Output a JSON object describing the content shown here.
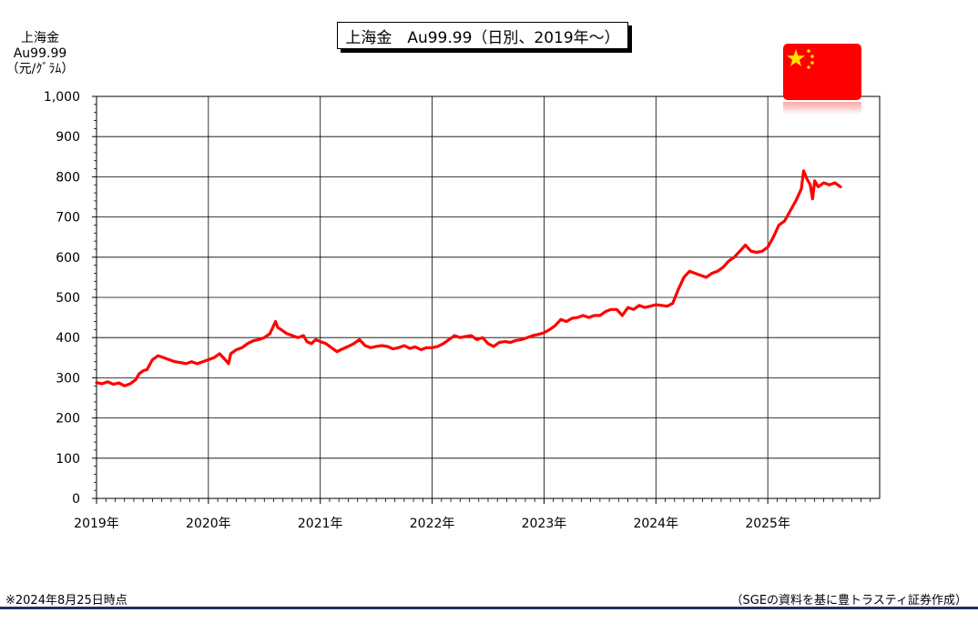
{
  "chart_data": {
    "type": "line",
    "title": "上海金　Au99.99（日別、2019年～）",
    "ylabel_lines": [
      "上海金",
      "Au99.99",
      "（元/ｸﾞﾗﾑ）"
    ],
    "ylim": [
      0,
      1000
    ],
    "yticks": [
      0,
      100,
      200,
      300,
      400,
      500,
      600,
      700,
      800,
      900,
      1000
    ],
    "ytick_labels": [
      "0",
      "100",
      "200",
      "300",
      "400",
      "500",
      "600",
      "700",
      "800",
      "900",
      "1,000"
    ],
    "xlim": [
      2019.0,
      2026.0
    ],
    "xticks": [
      2019,
      2020,
      2021,
      2022,
      2023,
      2024,
      2025
    ],
    "xtick_labels": [
      "2019年",
      "2020年",
      "2021年",
      "2022年",
      "2023年",
      "2024年",
      "2025年"
    ],
    "grid": true,
    "series": [
      {
        "color": "#ff0000",
        "x": [
          2019.0,
          2019.05,
          2019.1,
          2019.15,
          2019.2,
          2019.25,
          2019.3,
          2019.35,
          2019.38,
          2019.42,
          2019.45,
          2019.5,
          2019.55,
          2019.6,
          2019.65,
          2019.7,
          2019.75,
          2019.8,
          2019.85,
          2019.9,
          2019.95,
          2020.0,
          2020.05,
          2020.1,
          2020.15,
          2020.18,
          2020.2,
          2020.25,
          2020.3,
          2020.35,
          2020.4,
          2020.45,
          2020.5,
          2020.55,
          2020.6,
          2020.62,
          2020.65,
          2020.7,
          2020.75,
          2020.8,
          2020.85,
          2020.88,
          2020.92,
          2020.96,
          2021.0,
          2021.05,
          2021.1,
          2021.15,
          2021.2,
          2021.25,
          2021.3,
          2021.35,
          2021.4,
          2021.45,
          2021.5,
          2021.55,
          2021.6,
          2021.65,
          2021.7,
          2021.75,
          2021.8,
          2021.85,
          2021.9,
          2021.95,
          2022.0,
          2022.05,
          2022.1,
          2022.15,
          2022.2,
          2022.25,
          2022.3,
          2022.35,
          2022.4,
          2022.45,
          2022.5,
          2022.55,
          2022.6,
          2022.65,
          2022.7,
          2022.75,
          2022.8,
          2022.85,
          2022.9,
          2022.95,
          2023.0,
          2023.05,
          2023.1,
          2023.15,
          2023.2,
          2023.25,
          2023.3,
          2023.35,
          2023.4,
          2023.45,
          2023.5,
          2023.55,
          2023.6,
          2023.65,
          2023.7,
          2023.75,
          2023.8,
          2023.85,
          2023.9,
          2023.95,
          2024.0,
          2024.05,
          2024.1,
          2024.15,
          2024.2,
          2024.25,
          2024.3,
          2024.35,
          2024.4,
          2024.45,
          2024.5,
          2024.55,
          2024.6,
          2024.65,
          2024.7,
          2024.75,
          2024.8,
          2024.85,
          2024.9,
          2024.95,
          2025.0,
          2025.05,
          2025.1,
          2025.15,
          2025.2,
          2025.25,
          2025.3,
          2025.32,
          2025.35,
          2025.38,
          2025.4,
          2025.42,
          2025.45,
          2025.5,
          2025.55,
          2025.6,
          2025.65
        ],
        "y": [
          288,
          285,
          290,
          284,
          287,
          280,
          285,
          295,
          310,
          318,
          320,
          345,
          355,
          350,
          345,
          340,
          338,
          335,
          340,
          335,
          340,
          345,
          350,
          360,
          345,
          335,
          360,
          370,
          375,
          385,
          392,
          395,
          400,
          410,
          440,
          425,
          420,
          410,
          405,
          400,
          405,
          390,
          385,
          395,
          390,
          385,
          375,
          365,
          372,
          378,
          385,
          395,
          380,
          375,
          378,
          380,
          378,
          372,
          375,
          380,
          373,
          377,
          370,
          375,
          375,
          378,
          385,
          395,
          405,
          400,
          403,
          405,
          395,
          400,
          385,
          378,
          388,
          390,
          388,
          393,
          395,
          400,
          405,
          408,
          412,
          420,
          430,
          445,
          440,
          448,
          450,
          455,
          450,
          455,
          455,
          465,
          470,
          470,
          455,
          475,
          470,
          480,
          475,
          478,
          482,
          480,
          478,
          485,
          520,
          550,
          565,
          560,
          555,
          550,
          560,
          565,
          575,
          590,
          600,
          615,
          630,
          615,
          612,
          615,
          625,
          650,
          680,
          690,
          715,
          740,
          770,
          815,
          795,
          780,
          745,
          790,
          775,
          785,
          780,
          785,
          775
        ]
      }
    ]
  },
  "flag": {
    "name": "china-flag-icon",
    "red": "#ff0000",
    "star": "#ffde00"
  },
  "footnote": "※2024年8月25日時点",
  "source": "（SGEの資料を基に豊トラスティ証券作成）",
  "colors": {
    "line": "#ff0000",
    "grid": "#000000",
    "rule": "#1f2f5e"
  }
}
